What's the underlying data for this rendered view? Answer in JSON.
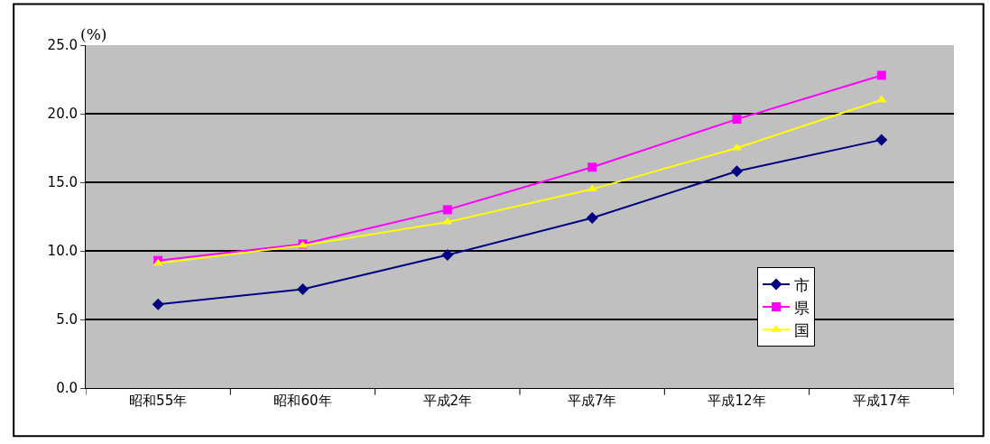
{
  "chart_data": {
    "type": "line",
    "ylabel": "(%)",
    "categories": [
      "昭和55年",
      "昭和60年",
      "平成2年",
      "平成7年",
      "平成12年",
      "平成17年"
    ],
    "series": [
      {
        "name": "市",
        "color": "#000080",
        "marker": "diamond",
        "values": [
          6.1,
          7.2,
          9.7,
          12.4,
          15.8,
          18.1
        ]
      },
      {
        "name": "県",
        "color": "#ff00ff",
        "marker": "square",
        "values": [
          9.3,
          10.5,
          13.0,
          16.1,
          19.6,
          22.8
        ]
      },
      {
        "name": "国",
        "color": "#ffff00",
        "marker": "triangle",
        "values": [
          9.1,
          10.4,
          12.1,
          14.5,
          17.5,
          21.0
        ]
      }
    ],
    "ylim": [
      0,
      25
    ],
    "yticks": [
      {
        "value": 0,
        "label": "0.0"
      },
      {
        "value": 5,
        "label": "5.0"
      },
      {
        "value": 10,
        "label": "10.0"
      },
      {
        "value": 15,
        "label": "15.0"
      },
      {
        "value": 20,
        "label": "20.0"
      },
      {
        "value": 25,
        "label": "25.0"
      }
    ],
    "grid": "y",
    "legend": "bottom right"
  }
}
